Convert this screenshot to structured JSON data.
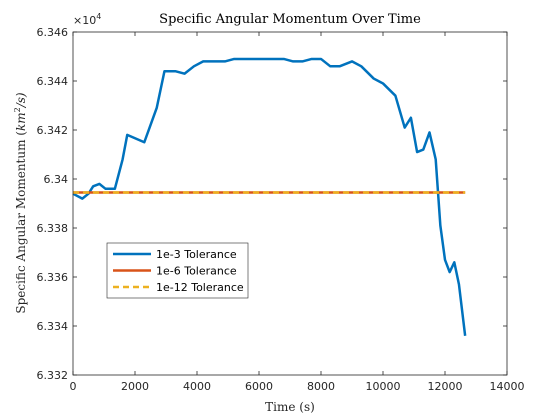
{
  "chart_data": {
    "type": "line",
    "title": "Specific Angular Momentum Over Time",
    "xlabel": "Time (s)",
    "ylabel_main": "Specific Angular Momentum (",
    "ylabel_unit_base": "km",
    "ylabel_unit_exp": "2",
    "ylabel_unit_tail": "/s)",
    "y_exponent_base": "×10",
    "y_exponent_power": "4",
    "xlim": [
      0,
      14000
    ],
    "ylim": [
      6.332,
      6.346
    ],
    "xticks": [
      "0",
      "2000",
      "4000",
      "6000",
      "8000",
      "10000",
      "12000",
      "14000"
    ],
    "yticks": [
      "6.332",
      "6.334",
      "6.336",
      "6.338",
      "6.34",
      "6.342",
      "6.344",
      "6.346"
    ],
    "grid": false,
    "legend_position": "lower-left",
    "series": [
      {
        "name": "1e-3 Tolerance",
        "color": "#0072BD",
        "style": "solid",
        "x": [
          0,
          300,
          500,
          650,
          850,
          1050,
          1350,
          1600,
          1750,
          2300,
          2700,
          2950,
          3300,
          3600,
          3900,
          4200,
          4500,
          4900,
          5200,
          5500,
          5900,
          6200,
          6500,
          6800,
          7100,
          7400,
          7700,
          8000,
          8300,
          8600,
          9000,
          9300,
          9700,
          10000,
          10400,
          10700,
          10900,
          11100,
          11300,
          11500,
          11700,
          11850,
          12000,
          12150,
          12300,
          12450,
          12650
        ],
        "y": [
          6.3394,
          6.3392,
          6.3394,
          6.3397,
          6.3398,
          6.3396,
          6.3396,
          6.3408,
          6.3418,
          6.3415,
          6.3429,
          6.3444,
          6.3444,
          6.3443,
          6.3446,
          6.3448,
          6.3448,
          6.3448,
          6.3449,
          6.3449,
          6.3449,
          6.3449,
          6.3449,
          6.3449,
          6.3448,
          6.3448,
          6.3449,
          6.3449,
          6.3446,
          6.3446,
          6.3448,
          6.3446,
          6.3441,
          6.3439,
          6.3434,
          6.3421,
          6.3425,
          6.3411,
          6.3412,
          6.3419,
          6.3408,
          6.3381,
          6.3367,
          6.3362,
          6.3366,
          6.3357,
          6.3336
        ]
      },
      {
        "name": "1e-6 Tolerance",
        "color": "#D95319",
        "style": "solid",
        "x": [
          0,
          12650
        ],
        "y": [
          6.33945,
          6.33945
        ]
      },
      {
        "name": "1e-12 Tolerance",
        "color": "#EDB120",
        "style": "dashed",
        "x": [
          0,
          12650
        ],
        "y": [
          6.33945,
          6.33945
        ]
      }
    ]
  }
}
